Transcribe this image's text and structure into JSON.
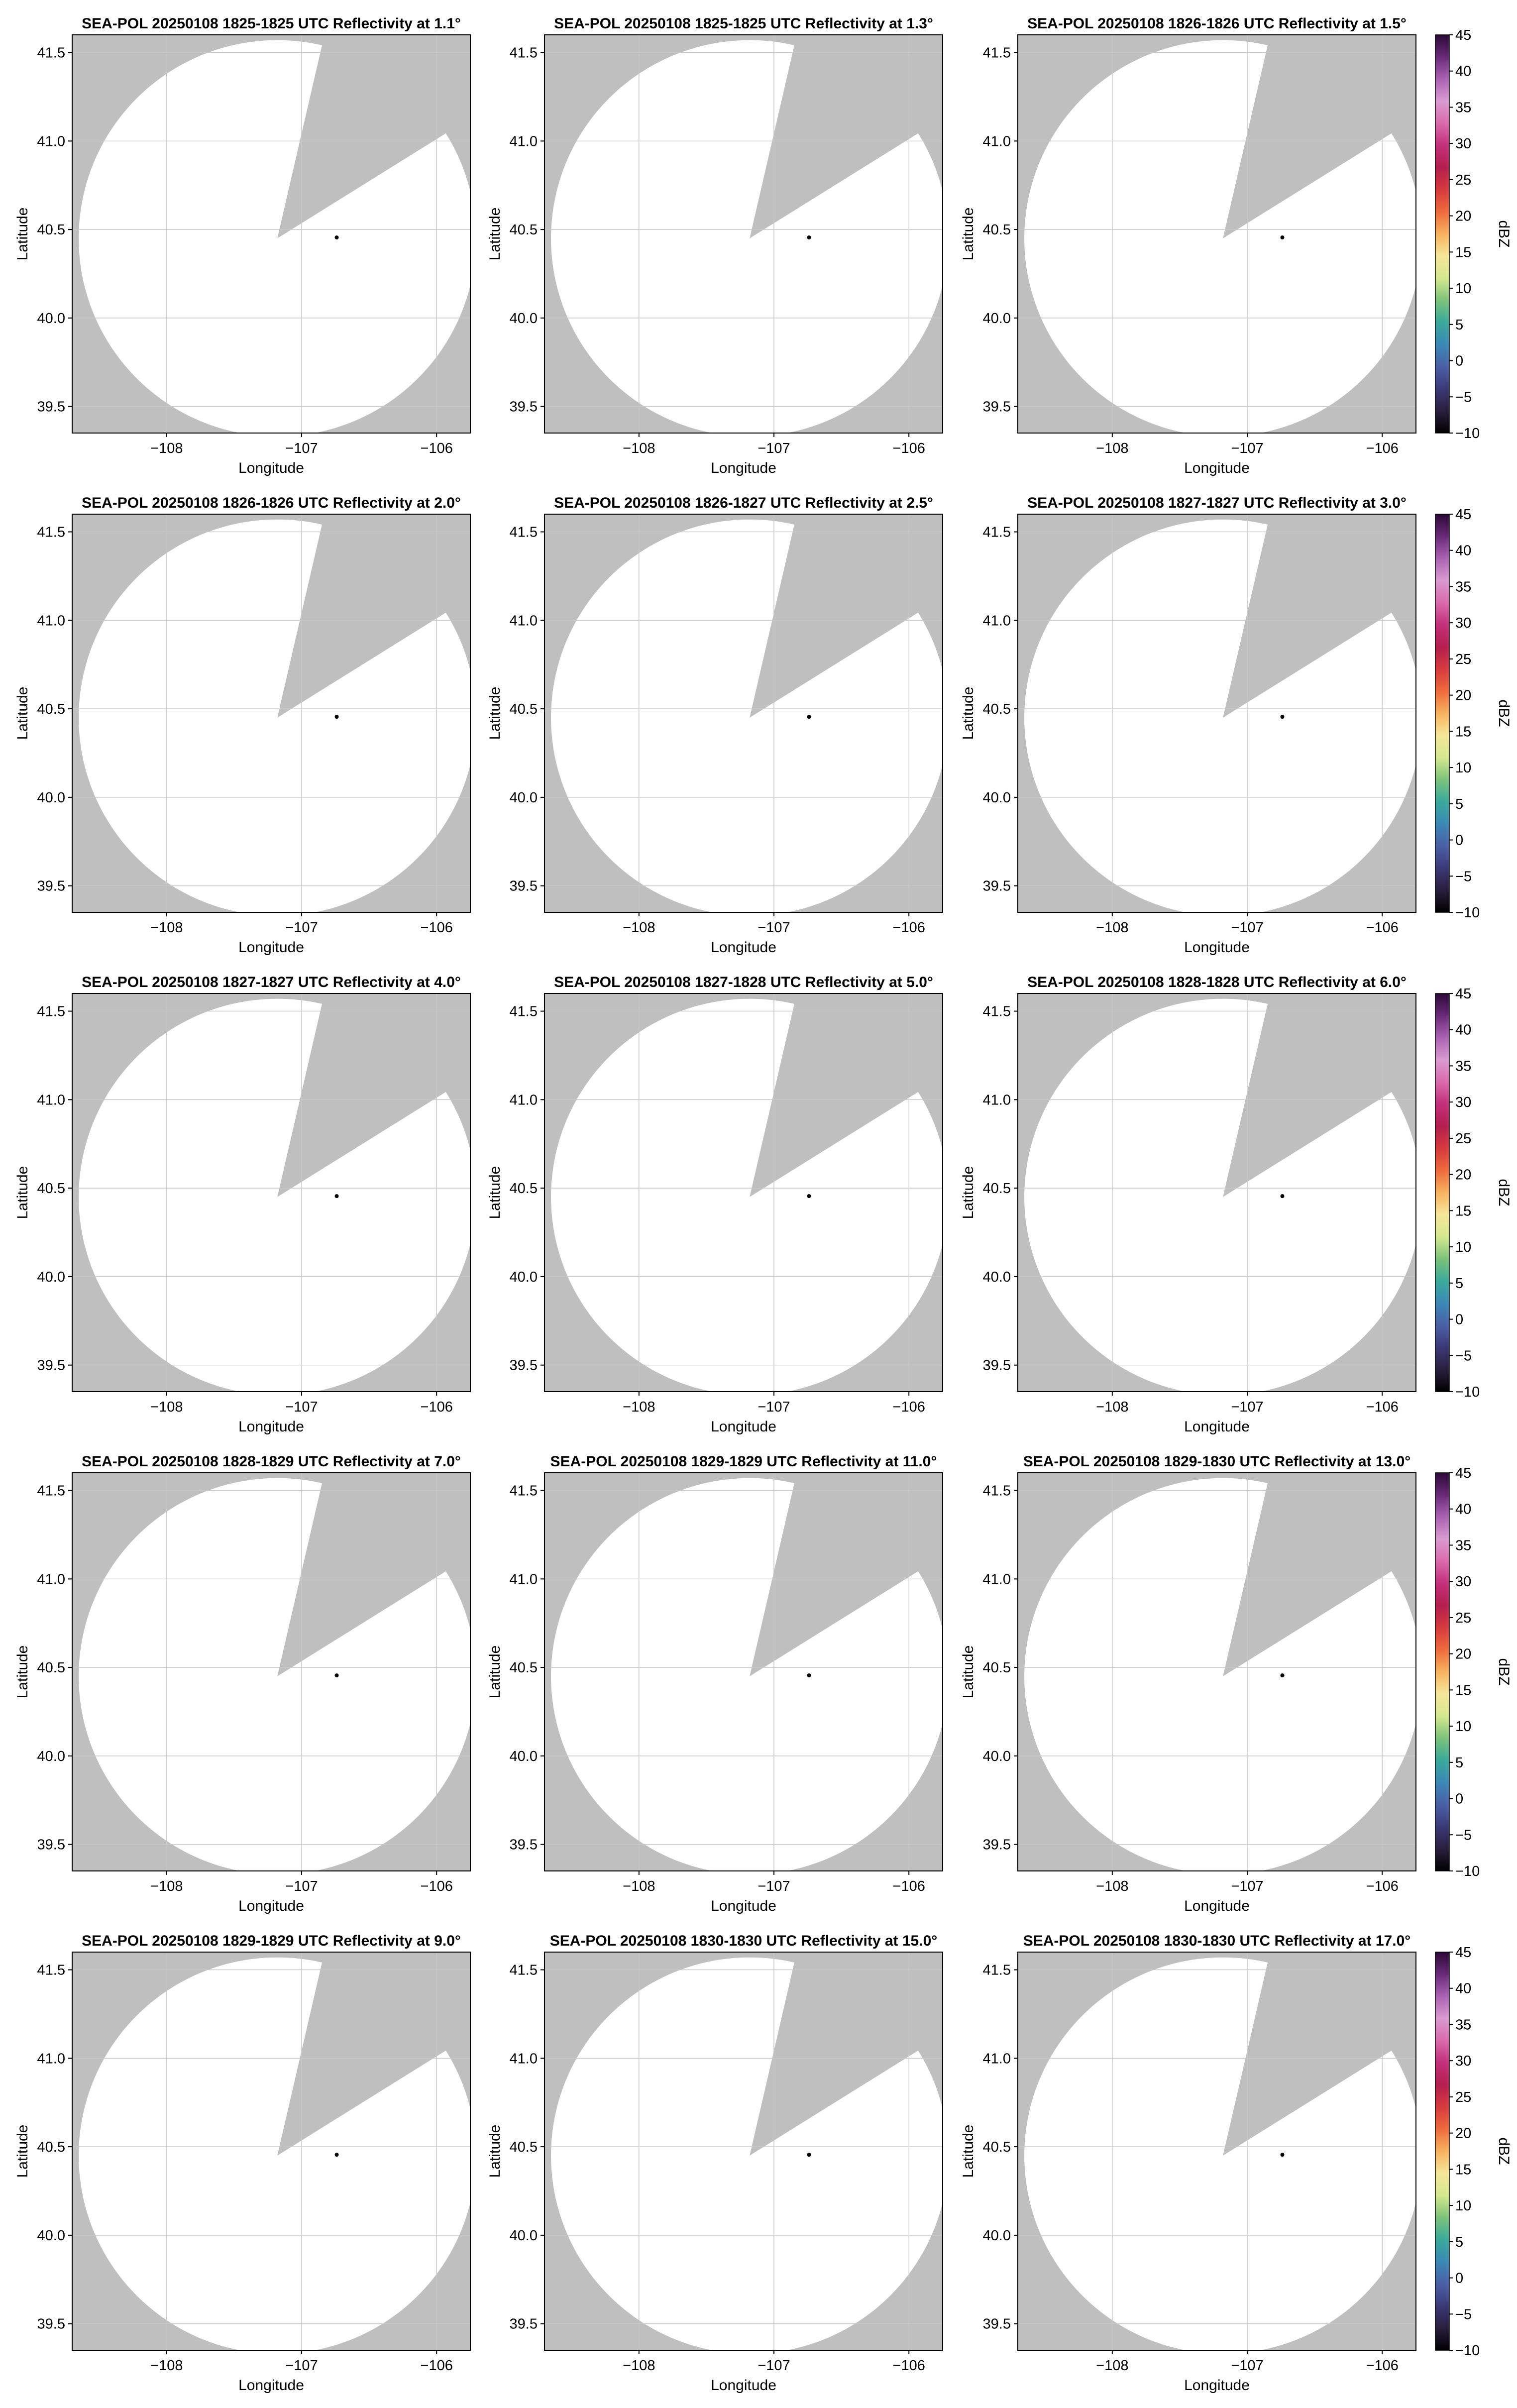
{
  "figure": {
    "layout": {
      "rows": 5,
      "cols": 3
    }
  },
  "colorbar": {
    "label": "dBZ",
    "ticks": [
      "45",
      "40",
      "35",
      "30",
      "25",
      "20",
      "15",
      "10",
      "5",
      "0",
      "−5",
      "−10"
    ],
    "range": [
      -10,
      45
    ],
    "colors": [
      "#000000",
      "#2a1f3e",
      "#3b3a78",
      "#4a5fa6",
      "#3b88b5",
      "#39a99a",
      "#7cc27a",
      "#d4e88e",
      "#f5e69a",
      "#f6b25e",
      "#ee6a3c",
      "#d63a3d",
      "#b41e4e",
      "#c2307a",
      "#d96aac",
      "#d99ad0",
      "#a962b2",
      "#6a2a78",
      "#2d0a3a"
    ]
  },
  "colors": {
    "background_nodata": "#bfbfbf",
    "coverage": "#ffffff",
    "grid": "#c8c8c8",
    "marker": "#000000"
  },
  "chart_data": [
    {
      "type": "heatmap",
      "title": "SEA-POL 20250108 1825-1825 UTC Reflectivity at 1.1°",
      "xlabel": "Longitude",
      "ylabel": "Latitude",
      "xticks": [
        "−108",
        "−107",
        "−106"
      ],
      "yticks": [
        "41.5",
        "41.0",
        "40.5",
        "40.0",
        "39.5"
      ],
      "xlim": [
        -108.7,
        -105.75
      ],
      "ylim": [
        39.35,
        41.6
      ],
      "grid": true,
      "radar_site": {
        "lon": -106.74,
        "lat": 40.455
      },
      "colorbar": false
    },
    {
      "type": "heatmap",
      "title": "SEA-POL 20250108 1825-1825 UTC Reflectivity at 1.3°",
      "xlabel": "Longitude",
      "ylabel": "Latitude",
      "xticks": [
        "−108",
        "−107",
        "−106"
      ],
      "yticks": [
        "41.5",
        "41.0",
        "40.5",
        "40.0",
        "39.5"
      ],
      "xlim": [
        -108.7,
        -105.75
      ],
      "ylim": [
        39.35,
        41.6
      ],
      "grid": true,
      "radar_site": {
        "lon": -106.74,
        "lat": 40.455
      },
      "colorbar": false
    },
    {
      "type": "heatmap",
      "title": "SEA-POL 20250108 1826-1826 UTC Reflectivity at 1.5°",
      "xlabel": "Longitude",
      "ylabel": "Latitude",
      "xticks": [
        "−108",
        "−107",
        "−106"
      ],
      "yticks": [
        "41.5",
        "41.0",
        "40.5",
        "40.0",
        "39.5"
      ],
      "xlim": [
        -108.7,
        -105.75
      ],
      "ylim": [
        39.35,
        41.6
      ],
      "grid": true,
      "radar_site": {
        "lon": -106.74,
        "lat": 40.455
      },
      "colorbar": true
    },
    {
      "type": "heatmap",
      "title": "SEA-POL 20250108 1826-1826 UTC Reflectivity at 2.0°",
      "xlabel": "Longitude",
      "ylabel": "Latitude",
      "xticks": [
        "−108",
        "−107",
        "−106"
      ],
      "yticks": [
        "41.5",
        "41.0",
        "40.5",
        "40.0",
        "39.5"
      ],
      "xlim": [
        -108.7,
        -105.75
      ],
      "ylim": [
        39.35,
        41.6
      ],
      "grid": true,
      "radar_site": {
        "lon": -106.74,
        "lat": 40.455
      },
      "colorbar": false
    },
    {
      "type": "heatmap",
      "title": "SEA-POL 20250108 1826-1827 UTC Reflectivity at 2.5°",
      "xlabel": "Longitude",
      "ylabel": "Latitude",
      "xticks": [
        "−108",
        "−107",
        "−106"
      ],
      "yticks": [
        "41.5",
        "41.0",
        "40.5",
        "40.0",
        "39.5"
      ],
      "xlim": [
        -108.7,
        -105.75
      ],
      "ylim": [
        39.35,
        41.6
      ],
      "grid": true,
      "radar_site": {
        "lon": -106.74,
        "lat": 40.455
      },
      "colorbar": false
    },
    {
      "type": "heatmap",
      "title": "SEA-POL 20250108 1827-1827 UTC Reflectivity at 3.0°",
      "xlabel": "Longitude",
      "ylabel": "Latitude",
      "xticks": [
        "−108",
        "−107",
        "−106"
      ],
      "yticks": [
        "41.5",
        "41.0",
        "40.5",
        "40.0",
        "39.5"
      ],
      "xlim": [
        -108.7,
        -105.75
      ],
      "ylim": [
        39.35,
        41.6
      ],
      "grid": true,
      "radar_site": {
        "lon": -106.74,
        "lat": 40.455
      },
      "colorbar": true
    },
    {
      "type": "heatmap",
      "title": "SEA-POL 20250108 1827-1827 UTC Reflectivity at 4.0°",
      "xlabel": "Longitude",
      "ylabel": "Latitude",
      "xticks": [
        "−108",
        "−107",
        "−106"
      ],
      "yticks": [
        "41.5",
        "41.0",
        "40.5",
        "40.0",
        "39.5"
      ],
      "xlim": [
        -108.7,
        -105.75
      ],
      "ylim": [
        39.35,
        41.6
      ],
      "grid": true,
      "radar_site": {
        "lon": -106.74,
        "lat": 40.455
      },
      "colorbar": false
    },
    {
      "type": "heatmap",
      "title": "SEA-POL 20250108 1827-1828 UTC Reflectivity at 5.0°",
      "xlabel": "Longitude",
      "ylabel": "Latitude",
      "xticks": [
        "−108",
        "−107",
        "−106"
      ],
      "yticks": [
        "41.5",
        "41.0",
        "40.5",
        "40.0",
        "39.5"
      ],
      "xlim": [
        -108.7,
        -105.75
      ],
      "ylim": [
        39.35,
        41.6
      ],
      "grid": true,
      "radar_site": {
        "lon": -106.74,
        "lat": 40.455
      },
      "colorbar": false
    },
    {
      "type": "heatmap",
      "title": "SEA-POL 20250108 1828-1828 UTC Reflectivity at 6.0°",
      "xlabel": "Longitude",
      "ylabel": "Latitude",
      "xticks": [
        "−108",
        "−107",
        "−106"
      ],
      "yticks": [
        "41.5",
        "41.0",
        "40.5",
        "40.0",
        "39.5"
      ],
      "xlim": [
        -108.7,
        -105.75
      ],
      "ylim": [
        39.35,
        41.6
      ],
      "grid": true,
      "radar_site": {
        "lon": -106.74,
        "lat": 40.455
      },
      "colorbar": true
    },
    {
      "type": "heatmap",
      "title": "SEA-POL 20250108 1828-1829 UTC Reflectivity at 7.0°",
      "xlabel": "Longitude",
      "ylabel": "Latitude",
      "xticks": [
        "−108",
        "−107",
        "−106"
      ],
      "yticks": [
        "41.5",
        "41.0",
        "40.5",
        "40.0",
        "39.5"
      ],
      "xlim": [
        -108.7,
        -105.75
      ],
      "ylim": [
        39.35,
        41.6
      ],
      "grid": true,
      "radar_site": {
        "lon": -106.74,
        "lat": 40.455
      },
      "colorbar": false
    },
    {
      "type": "heatmap",
      "title": "SEA-POL 20250108 1829-1829 UTC Reflectivity at 11.0°",
      "xlabel": "Longitude",
      "ylabel": "Latitude",
      "xticks": [
        "−108",
        "−107",
        "−106"
      ],
      "yticks": [
        "41.5",
        "41.0",
        "40.5",
        "40.0",
        "39.5"
      ],
      "xlim": [
        -108.7,
        -105.75
      ],
      "ylim": [
        39.35,
        41.6
      ],
      "grid": true,
      "radar_site": {
        "lon": -106.74,
        "lat": 40.455
      },
      "colorbar": false
    },
    {
      "type": "heatmap",
      "title": "SEA-POL 20250108 1829-1830 UTC Reflectivity at 13.0°",
      "xlabel": "Longitude",
      "ylabel": "Latitude",
      "xticks": [
        "−108",
        "−107",
        "−106"
      ],
      "yticks": [
        "41.5",
        "41.0",
        "40.5",
        "40.0",
        "39.5"
      ],
      "xlim": [
        -108.7,
        -105.75
      ],
      "ylim": [
        39.35,
        41.6
      ],
      "grid": true,
      "radar_site": {
        "lon": -106.74,
        "lat": 40.455
      },
      "colorbar": true
    },
    {
      "type": "heatmap",
      "title": "SEA-POL 20250108 1829-1829 UTC Reflectivity at 9.0°",
      "xlabel": "Longitude",
      "ylabel": "Latitude",
      "xticks": [
        "−108",
        "−107",
        "−106"
      ],
      "yticks": [
        "41.5",
        "41.0",
        "40.5",
        "40.0",
        "39.5"
      ],
      "xlim": [
        -108.7,
        -105.75
      ],
      "ylim": [
        39.35,
        41.6
      ],
      "grid": true,
      "radar_site": {
        "lon": -106.74,
        "lat": 40.455
      },
      "colorbar": false
    },
    {
      "type": "heatmap",
      "title": "SEA-POL 20250108 1830-1830 UTC Reflectivity at 15.0°",
      "xlabel": "Longitude",
      "ylabel": "Latitude",
      "xticks": [
        "−108",
        "−107",
        "−106"
      ],
      "yticks": [
        "41.5",
        "41.0",
        "40.5",
        "40.0",
        "39.5"
      ],
      "xlim": [
        -108.7,
        -105.75
      ],
      "ylim": [
        39.35,
        41.6
      ],
      "grid": true,
      "radar_site": {
        "lon": -106.74,
        "lat": 40.455
      },
      "colorbar": false
    },
    {
      "type": "heatmap",
      "title": "SEA-POL 20250108 1830-1830 UTC Reflectivity at 17.0°",
      "xlabel": "Longitude",
      "ylabel": "Latitude",
      "xticks": [
        "−108",
        "−107",
        "−106"
      ],
      "yticks": [
        "41.5",
        "41.0",
        "40.5",
        "40.0",
        "39.5"
      ],
      "xlim": [
        -108.7,
        -105.75
      ],
      "ylim": [
        39.35,
        41.6
      ],
      "grid": true,
      "radar_site": {
        "lon": -106.74,
        "lat": 40.455
      },
      "colorbar": true
    }
  ]
}
